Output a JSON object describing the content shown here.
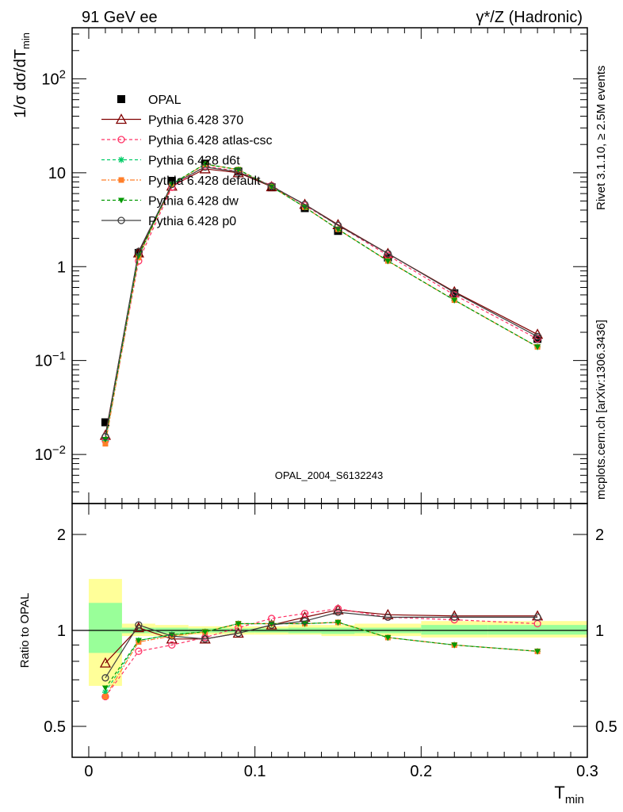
{
  "header": {
    "left_label": "91 GeV ee",
    "right_label": "γ*/Z (Hadronic)"
  },
  "side_labels": {
    "rivet": "Rivet 3.1.10, ≥ 2.5M events",
    "mcplots": "mcplots.cern.ch [arXiv:1306.3436]"
  },
  "analysis_id": "OPAL_2004_S6132243",
  "colors": {
    "opal": "#000000",
    "p370": "#800000",
    "atlas": "#ff3366",
    "d6t": "#00cc66",
    "default": "#ff7f2a",
    "dw": "#009900",
    "p0": "#404040",
    "band_outer": "#ffff99",
    "band_inner": "#99ff99"
  },
  "chart_data": [
    {
      "type": "line",
      "ylabel": "1/σ dσ/dT_min",
      "yscale": "log",
      "xlim": [
        -0.01,
        0.3
      ],
      "ylim": [
        0.003,
        350
      ],
      "x_ticks": [
        0,
        0.1,
        0.2,
        0.3
      ],
      "y_ticks": [
        {
          "value": 0.01,
          "label": "10^-2"
        },
        {
          "value": 0.1,
          "label": "10^-1"
        },
        {
          "value": 1,
          "label": "1"
        },
        {
          "value": 10,
          "label": "10"
        },
        {
          "value": 100,
          "label": "10^2"
        }
      ],
      "legend_position": "top-left",
      "x": [
        0.01,
        0.03,
        0.05,
        0.07,
        0.09,
        0.11,
        0.13,
        0.15,
        0.18,
        0.22,
        0.27
      ],
      "series": [
        {
          "name": "OPAL",
          "key": "opal",
          "marker": "square-filled",
          "dash": "none",
          "values": [
            0.022,
            1.4,
            8.2,
            12.5,
            10.3,
            7.0,
            4.2,
            2.4,
            1.25,
            0.52,
            0.17
          ]
        },
        {
          "name": "Pythia 6.428 370",
          "key": "p370",
          "marker": "triangle-open",
          "dash": "none",
          "values": [
            0.016,
            1.4,
            7.2,
            11.0,
            10.0,
            7.1,
            4.6,
            2.8,
            1.38,
            0.54,
            0.19
          ]
        },
        {
          "name": "Pythia 6.428 atlas-csc",
          "key": "atlas",
          "marker": "circle-open",
          "dash": "4,3",
          "values": [
            0.014,
            1.15,
            7.0,
            11.8,
            10.3,
            7.3,
            4.5,
            2.75,
            1.32,
            0.5,
            0.17
          ]
        },
        {
          "name": "Pythia 6.428 d6t",
          "key": "d6t",
          "marker": "asterisk",
          "dash": "4,3",
          "values": [
            0.014,
            1.3,
            7.6,
            12.3,
            10.8,
            7.1,
            4.3,
            2.5,
            1.15,
            0.44,
            0.14
          ]
        },
        {
          "name": "Pythia 6.428 default",
          "key": "default",
          "marker": "square-small",
          "dash": "6,2,2,2",
          "values": [
            0.013,
            1.25,
            7.5,
            12.3,
            10.8,
            7.1,
            4.3,
            2.5,
            1.15,
            0.44,
            0.14
          ]
        },
        {
          "name": "Pythia 6.428 dw",
          "key": "dw",
          "marker": "triangle-down-filled",
          "dash": "4,3",
          "values": [
            0.0145,
            1.3,
            7.6,
            12.4,
            10.8,
            7.1,
            4.3,
            2.5,
            1.15,
            0.44,
            0.14
          ]
        },
        {
          "name": "Pythia 6.428 p0",
          "key": "p0",
          "marker": "circle-open",
          "dash": "none",
          "values": [
            0.0155,
            1.45,
            7.5,
            11.5,
            10.2,
            7.2,
            4.6,
            2.75,
            1.38,
            0.53,
            0.18
          ]
        }
      ]
    },
    {
      "type": "line",
      "xlabel": "T_min",
      "ylabel": "Ratio to OPAL",
      "yscale": "log",
      "xlim": [
        -0.01,
        0.3
      ],
      "ylim": [
        0.4,
        2.5
      ],
      "x_ticks": [
        0,
        0.1,
        0.2,
        0.3
      ],
      "y_ticks": [
        {
          "value": 0.5,
          "label": "0.5"
        },
        {
          "value": 1,
          "label": "1"
        },
        {
          "value": 2,
          "label": "2"
        }
      ],
      "uncertainty_bands": [
        {
          "x": [
            0,
            0.02
          ],
          "outer": [
            0.67,
            1.45
          ],
          "inner": [
            0.85,
            1.22
          ]
        },
        {
          "x": [
            0.02,
            0.04
          ],
          "outer": [
            0.96,
            1.05
          ],
          "inner": [
            0.98,
            1.02
          ]
        },
        {
          "x": [
            0.04,
            0.06
          ],
          "outer": [
            0.96,
            1.04
          ],
          "inner": [
            0.98,
            1.02
          ]
        },
        {
          "x": [
            0.06,
            0.08
          ],
          "outer": [
            0.97,
            1.03
          ],
          "inner": [
            0.985,
            1.015
          ]
        },
        {
          "x": [
            0.08,
            0.1
          ],
          "outer": [
            0.97,
            1.03
          ],
          "inner": [
            0.985,
            1.015
          ]
        },
        {
          "x": [
            0.1,
            0.12
          ],
          "outer": [
            0.97,
            1.03
          ],
          "inner": [
            0.985,
            1.015
          ]
        },
        {
          "x": [
            0.12,
            0.14
          ],
          "outer": [
            0.97,
            1.04
          ],
          "inner": [
            0.98,
            1.02
          ]
        },
        {
          "x": [
            0.14,
            0.16
          ],
          "outer": [
            0.96,
            1.04
          ],
          "inner": [
            0.975,
            1.02
          ]
        },
        {
          "x": [
            0.16,
            0.2
          ],
          "outer": [
            0.96,
            1.05
          ],
          "inner": [
            0.98,
            1.02
          ]
        },
        {
          "x": [
            0.2,
            0.24
          ],
          "outer": [
            0.95,
            1.07
          ],
          "inner": [
            0.97,
            1.04
          ]
        },
        {
          "x": [
            0.24,
            0.3
          ],
          "outer": [
            0.95,
            1.07
          ],
          "inner": [
            0.97,
            1.04
          ]
        }
      ],
      "x": [
        0.01,
        0.03,
        0.05,
        0.07,
        0.09,
        0.11,
        0.13,
        0.15,
        0.18,
        0.22,
        0.27
      ],
      "series": [
        {
          "name": "Pythia 6.428 370",
          "key": "p370",
          "marker": "triangle-open",
          "dash": "none",
          "values": [
            0.79,
            1.02,
            0.94,
            0.94,
            0.98,
            1.04,
            1.1,
            1.16,
            1.12,
            1.11,
            1.11
          ]
        },
        {
          "name": "Pythia 6.428 atlas-csc",
          "key": "atlas",
          "marker": "circle-open",
          "dash": "4,3",
          "values": [
            0.62,
            0.86,
            0.9,
            0.95,
            1.02,
            1.09,
            1.13,
            1.17,
            1.1,
            1.08,
            1.05
          ]
        },
        {
          "name": "Pythia 6.428 d6t",
          "key": "d6t",
          "marker": "asterisk",
          "dash": "4,3",
          "values": [
            0.64,
            0.93,
            0.97,
            0.99,
            1.05,
            1.05,
            1.05,
            1.06,
            0.95,
            0.9,
            0.86
          ]
        },
        {
          "name": "Pythia 6.428 default",
          "key": "default",
          "marker": "square-small",
          "dash": "6,2,2,2",
          "values": [
            0.62,
            0.92,
            0.96,
            0.99,
            1.05,
            1.05,
            1.05,
            1.06,
            0.95,
            0.9,
            0.86
          ]
        },
        {
          "name": "Pythia 6.428 dw",
          "key": "dw",
          "marker": "triangle-down-filled",
          "dash": "4,3",
          "values": [
            0.66,
            0.93,
            0.97,
            0.99,
            1.05,
            1.05,
            1.05,
            1.06,
            0.95,
            0.9,
            0.86
          ]
        },
        {
          "name": "Pythia 6.428 p0",
          "key": "p0",
          "marker": "circle-open",
          "dash": "none",
          "values": [
            0.71,
            1.04,
            0.96,
            0.94,
            0.98,
            1.04,
            1.07,
            1.14,
            1.1,
            1.1,
            1.1
          ]
        }
      ]
    }
  ]
}
